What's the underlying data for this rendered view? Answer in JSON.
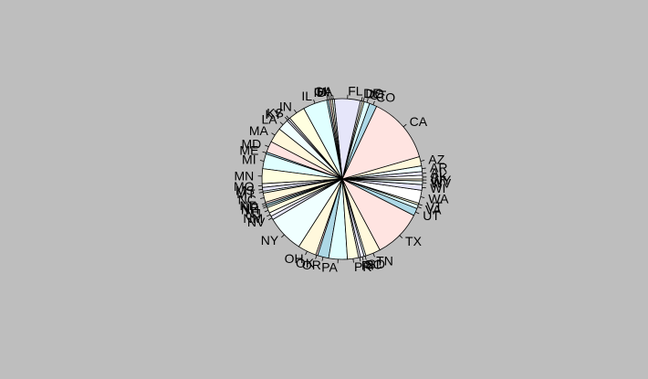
{
  "chart_data": {
    "type": "pie",
    "title": "",
    "start_angle_deg": 0,
    "direction": "counterclockwise",
    "palette": [
      "#ffffff",
      "#e6e6fa",
      "#f0ffff",
      "#fff8dc",
      "#ffe4e1",
      "#add8e6",
      "#e0ffff",
      "#ffffe0"
    ],
    "stroke_color": "#000000",
    "background": "#bebebe",
    "slices": [
      {
        "label": "AK",
        "value": 2
      },
      {
        "label": "AL",
        "value": 2
      },
      {
        "label": "AR",
        "value": 3
      },
      {
        "label": "AZ",
        "value": 5
      },
      {
        "label": "CA",
        "value": 36
      },
      {
        "label": "CO",
        "value": 4
      },
      {
        "label": "CT",
        "value": 3
      },
      {
        "label": "DC",
        "value": 1
      },
      {
        "label": "DE",
        "value": 1
      },
      {
        "label": "FL",
        "value": 14
      },
      {
        "label": "GA",
        "value": 1
      },
      {
        "label": "HI",
        "value": 1
      },
      {
        "label": "IA",
        "value": 1
      },
      {
        "label": "ID",
        "value": 1
      },
      {
        "label": "IL",
        "value": 13
      },
      {
        "label": "IN",
        "value": 9
      },
      {
        "label": "KS",
        "value": 1
      },
      {
        "label": "KY",
        "value": 1
      },
      {
        "label": "LA",
        "value": 6
      },
      {
        "label": "MA",
        "value": 8
      },
      {
        "label": "MD",
        "value": 6
      },
      {
        "label": "ME",
        "value": 1
      },
      {
        "label": "MI",
        "value": 8
      },
      {
        "label": "MN",
        "value": 8
      },
      {
        "label": "MO",
        "value": 2
      },
      {
        "label": "MS",
        "value": 2
      },
      {
        "label": "MT",
        "value": 1
      },
      {
        "label": "NC",
        "value": 5
      },
      {
        "label": "ND",
        "value": 1
      },
      {
        "label": "NE",
        "value": 1
      },
      {
        "label": "NH",
        "value": 1
      },
      {
        "label": "NJ",
        "value": 3
      },
      {
        "label": "NM",
        "value": 2
      },
      {
        "label": "NV",
        "value": 2
      },
      {
        "label": "NY",
        "value": 20
      },
      {
        "label": "OH",
        "value": 10
      },
      {
        "label": "OK",
        "value": 1
      },
      {
        "label": "OR",
        "value": 6
      },
      {
        "label": "PA",
        "value": 10
      },
      {
        "label": "PR",
        "value": 6
      },
      {
        "label": "RI",
        "value": 1
      },
      {
        "label": "SC",
        "value": 2
      },
      {
        "label": "SD",
        "value": 1
      },
      {
        "label": "TN",
        "value": 8
      },
      {
        "label": "TX",
        "value": 26
      },
      {
        "label": "UT",
        "value": 4
      },
      {
        "label": "VA",
        "value": 2
      },
      {
        "label": "VT",
        "value": 1
      },
      {
        "label": "WA",
        "value": 7
      },
      {
        "label": "WI",
        "value": 3
      },
      {
        "label": "WV",
        "value": 2
      },
      {
        "label": "WY",
        "value": 1
      }
    ]
  }
}
